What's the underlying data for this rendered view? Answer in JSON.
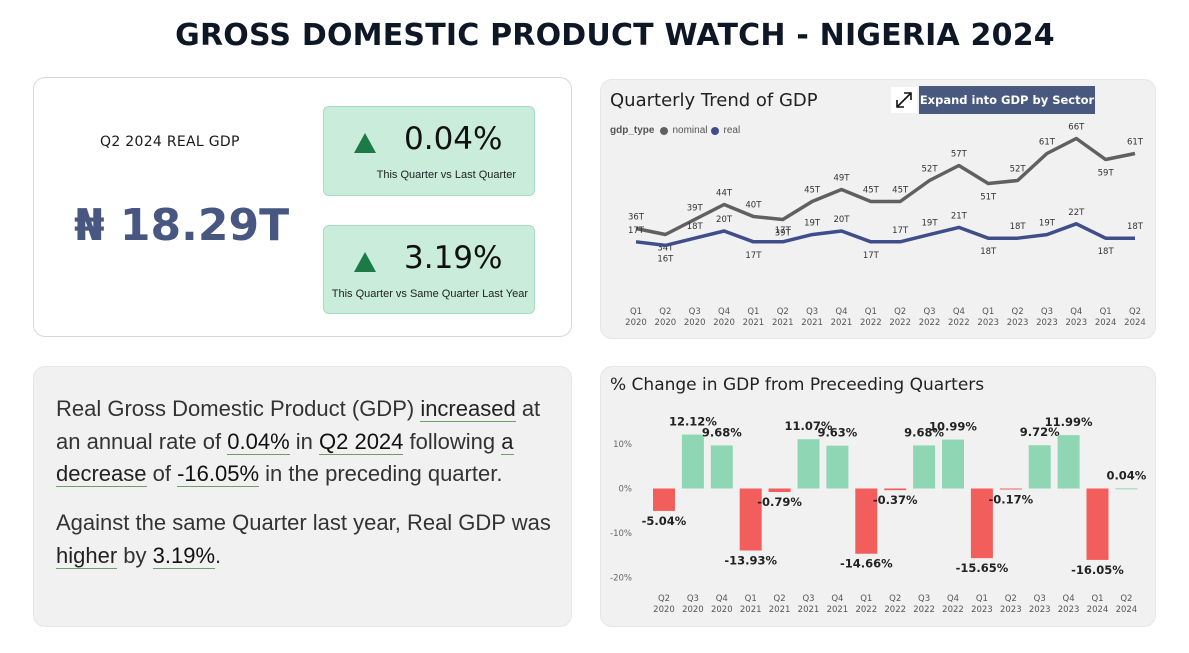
{
  "page": {
    "title": "GROSS DOMESTIC PRODUCT WATCH - NIGERIA 2024"
  },
  "kpi": {
    "label": "Q2 2024 REAL GDP",
    "value": "₦ 18.29T",
    "qoq": {
      "value": "0.04%",
      "caption": "This Quarter vs Last Quarter"
    },
    "yoy": {
      "value": "3.19%",
      "caption": "This Quarter vs Same Quarter Last Year"
    },
    "colors": {
      "value": "#485782",
      "up_arrow": "#1b7a45",
      "box_bg": "#c9ecdb"
    }
  },
  "summary": {
    "p1": {
      "t1": "Real Gross Domestic Product (GDP) ",
      "h1": "increased",
      "t2": " at an annual rate of ",
      "h2": "0.04%",
      "t3": " in ",
      "h3": "Q2 2024",
      "t4": " following ",
      "h4": "a decrease",
      "t5": " of ",
      "h5": "-16.05%",
      "t6": " in the preceding quarter."
    },
    "p2": {
      "t1": "Against the same Quarter last year, Real GDP was ",
      "h1": "higher",
      "t2": " by ",
      "h2": "3.19%",
      "t3": "."
    }
  },
  "trend_chart": {
    "title": "Quarterly Trend of GDP",
    "expand_icon": "expand-arrows-icon",
    "expand_button": "Expand into GDP by Sector",
    "legend_title": "gdp_type",
    "chart_data": {
      "type": "line",
      "categories": [
        "Q1\n2020",
        "Q2\n2020",
        "Q3\n2020",
        "Q4\n2020",
        "Q1\n2021",
        "Q2\n2021",
        "Q3\n2021",
        "Q4\n2021",
        "Q1\n2022",
        "Q2\n2022",
        "Q3\n2022",
        "Q4\n2022",
        "Q1\n2023",
        "Q2\n2023",
        "Q3\n2023",
        "Q4\n2023",
        "Q1\n2024",
        "Q2\n2024"
      ],
      "series": [
        {
          "name": "nominal",
          "color": "#606060",
          "values": [
            36,
            34,
            39,
            44,
            40,
            39,
            45,
            49,
            45,
            45,
            52,
            57,
            51,
            52,
            61,
            66,
            59,
            61
          ],
          "labels": [
            "36T",
            "34T",
            "39T",
            "44T",
            "40T",
            "39T",
            "45T",
            "49T",
            "45T",
            "45T",
            "52T",
            "57T",
            "51T",
            "52T",
            "61T",
            "66T",
            "59T",
            "61T"
          ]
        },
        {
          "name": "real",
          "color": "#3f4e8a",
          "values": [
            17,
            16,
            18,
            20,
            17,
            17,
            19,
            20,
            17,
            17,
            19,
            21,
            18,
            18,
            19,
            22,
            18,
            18
          ],
          "labels": [
            "17T",
            "16T",
            "18T",
            "20T",
            "17T",
            "17T",
            "19T",
            "20T",
            "17T",
            "17T",
            "19T",
            "21T",
            "18T",
            "18T",
            "19T",
            "22T",
            "18T",
            "18T"
          ]
        }
      ]
    }
  },
  "change_chart": {
    "title": "% Change in GDP from Preceeding Quarters",
    "chart_data": {
      "type": "bar",
      "categories": [
        "Q2\n2020",
        "Q3\n2020",
        "Q4\n2020",
        "Q1\n2021",
        "Q2\n2021",
        "Q3\n2021",
        "Q4\n2021",
        "Q1\n2022",
        "Q2\n2022",
        "Q3\n2022",
        "Q4\n2022",
        "Q1\n2023",
        "Q2\n2023",
        "Q3\n2023",
        "Q4\n2023",
        "Q1\n2024",
        "Q2\n2024"
      ],
      "values": [
        -5.04,
        12.12,
        9.68,
        -13.93,
        -0.79,
        11.07,
        9.63,
        -14.66,
        -0.37,
        9.68,
        10.99,
        -15.65,
        -0.17,
        9.72,
        11.99,
        -16.05,
        0.04
      ],
      "labels": [
        "-5.04%",
        "12.12%",
        "9.68%",
        "-13.93%",
        "-0.79%",
        "11.07%",
        "9.63%",
        "-14.66%",
        "-0.37%",
        "9.68%",
        "10.99%",
        "-15.65%",
        "-0.17%",
        "9.72%",
        "11.99%",
        "-16.05%",
        "0.04%"
      ],
      "y_ticks": [
        "10%",
        "0%",
        "-10%",
        "-20%"
      ],
      "y_tick_values": [
        10,
        0,
        -10,
        -20
      ],
      "ylim": [
        -20,
        15
      ],
      "positive_color": "#8fd6b4",
      "negative_color": "#f25e5c"
    }
  }
}
